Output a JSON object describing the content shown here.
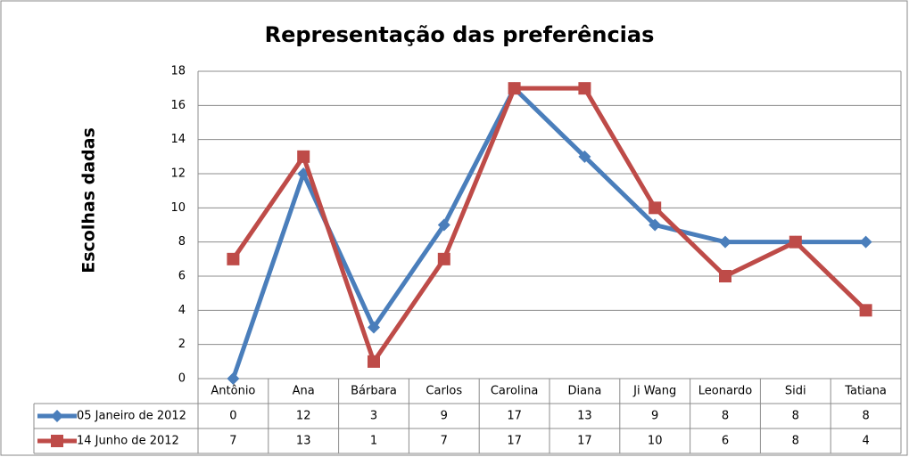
{
  "chart_data": {
    "type": "line",
    "title": "Representação das preferências",
    "y_label": "Escolhas dadas",
    "categories": [
      "Antônio",
      "Ana",
      "Bárbara",
      "Carlos",
      "Carolina",
      "Diana",
      "Ji Wang",
      "Leonardo",
      "Sidi",
      "Tatiana"
    ],
    "series": [
      {
        "name": "05 Janeiro de 2012",
        "color": "#4a7ebb",
        "marker": "diamond",
        "values": [
          0,
          12,
          3,
          9,
          17,
          13,
          9,
          8,
          8,
          8
        ]
      },
      {
        "name": "14 Junho de 2012",
        "color": "#be4b48",
        "marker": "square",
        "values": [
          7,
          13,
          1,
          7,
          17,
          17,
          10,
          6,
          8,
          4
        ]
      }
    ],
    "ylim": [
      0,
      18
    ],
    "yticks": [
      0,
      2,
      4,
      6,
      8,
      10,
      12,
      14,
      16,
      18
    ],
    "grid": true,
    "data_table": true
  }
}
